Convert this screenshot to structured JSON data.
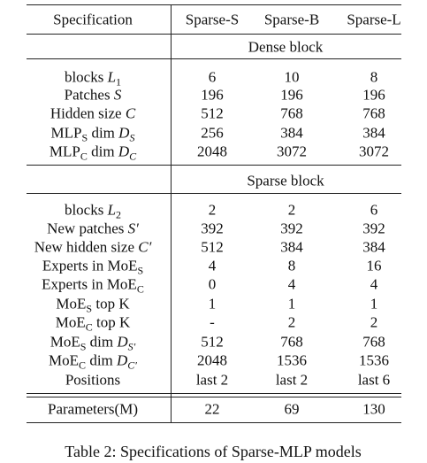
{
  "header": [
    "Specification",
    "Sparse-S",
    "Sparse-B",
    "Sparse-L"
  ],
  "sections": [
    {
      "title": "Dense block",
      "rows": [
        {
          "label": [
            [
              "blocks ",
              ""
            ],
            [
              "L",
              "i"
            ],
            [
              "1",
              "sub"
            ]
          ],
          "values": [
            6,
            10,
            8
          ]
        },
        {
          "label": [
            [
              "Patches ",
              ""
            ],
            [
              "S",
              "i"
            ]
          ],
          "values": [
            196,
            196,
            196
          ]
        },
        {
          "label": [
            [
              "Hidden size ",
              ""
            ],
            [
              "C",
              "i"
            ]
          ],
          "values": [
            512,
            768,
            768
          ]
        },
        {
          "label": [
            [
              "MLP",
              ""
            ],
            [
              "S",
              "sub"
            ],
            [
              " dim ",
              ""
            ],
            [
              "D",
              "i"
            ],
            [
              "S",
              "isub"
            ]
          ],
          "values": [
            256,
            384,
            384
          ]
        },
        {
          "label": [
            [
              "MLP",
              ""
            ],
            [
              "C",
              "sub"
            ],
            [
              " dim ",
              ""
            ],
            [
              "D",
              "i"
            ],
            [
              "C",
              "isub"
            ]
          ],
          "values": [
            2048,
            3072,
            3072
          ]
        }
      ]
    },
    {
      "title": "Sparse block",
      "rows": [
        {
          "label": [
            [
              "blocks ",
              ""
            ],
            [
              "L",
              "i"
            ],
            [
              "2",
              "sub"
            ]
          ],
          "values": [
            2,
            2,
            6
          ]
        },
        {
          "label": [
            [
              "New patches ",
              ""
            ],
            [
              "S′",
              "i"
            ]
          ],
          "values": [
            392,
            392,
            392
          ]
        },
        {
          "label": [
            [
              "New hidden size ",
              ""
            ],
            [
              "C′",
              "i"
            ]
          ],
          "values": [
            512,
            384,
            384
          ]
        },
        {
          "label": [
            [
              "Experts in MoE",
              ""
            ],
            [
              "S",
              "sub"
            ]
          ],
          "values": [
            4,
            8,
            16
          ]
        },
        {
          "label": [
            [
              "Experts in MoE",
              ""
            ],
            [
              "C",
              "sub"
            ]
          ],
          "values": [
            0,
            4,
            4
          ]
        },
        {
          "label": [
            [
              "MoE",
              ""
            ],
            [
              "S",
              "sub"
            ],
            [
              " top K",
              ""
            ]
          ],
          "values": [
            1,
            1,
            1
          ]
        },
        {
          "label": [
            [
              "MoE",
              ""
            ],
            [
              "C",
              "sub"
            ],
            [
              " top K",
              ""
            ]
          ],
          "values": [
            "-",
            2,
            2
          ]
        },
        {
          "label": [
            [
              "MoE",
              ""
            ],
            [
              "S",
              "sub"
            ],
            [
              " dim ",
              ""
            ],
            [
              "D",
              "i"
            ],
            [
              "S′",
              "isub"
            ]
          ],
          "values": [
            512,
            768,
            768
          ]
        },
        {
          "label": [
            [
              "MoE",
              ""
            ],
            [
              "C",
              "sub"
            ],
            [
              " dim ",
              ""
            ],
            [
              "D",
              "i"
            ],
            [
              "C′",
              "isub"
            ]
          ],
          "values": [
            2048,
            1536,
            1536
          ]
        },
        {
          "label": [
            [
              "Positions",
              ""
            ]
          ],
          "values": [
            "last 2",
            "last 2",
            "last 6"
          ]
        }
      ]
    }
  ],
  "total": {
    "label": [
      [
        "Parameters(M)",
        ""
      ]
    ],
    "values": [
      22,
      69,
      130
    ]
  },
  "caption": "Table 2: Specifications of Sparse-MLP models"
}
